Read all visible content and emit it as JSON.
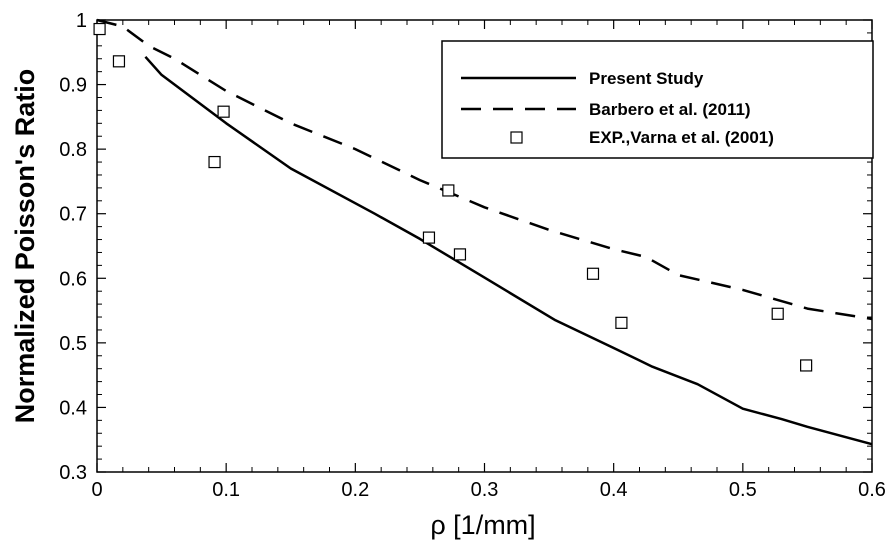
{
  "chart_data": {
    "type": "line",
    "title": "",
    "xlabel": "ρ [1/mm]",
    "ylabel": "Normalized Poisson's Ratio",
    "xlim": [
      0,
      0.6
    ],
    "ylim": [
      0.3,
      1
    ],
    "xticks": [
      0,
      0.1,
      0.2,
      0.3,
      0.4,
      0.5,
      0.6
    ],
    "yticks": [
      0.3,
      0.4,
      0.5,
      0.6,
      0.7,
      0.8,
      0.9,
      1
    ],
    "xtick_labels": [
      "0",
      "0.1",
      "0.2",
      "0.3",
      "0.4",
      "0.5",
      "0.6"
    ],
    "ytick_labels": [
      "0.3",
      "0.4",
      "0.5",
      "0.6",
      "0.7",
      "0.8",
      "0.9",
      "1"
    ],
    "grid": false,
    "legend_position": "top-right",
    "series": [
      {
        "name": "Present Study",
        "style": "solid",
        "x": [
          0.0375,
          0.05,
          0.1,
          0.15,
          0.215,
          0.25,
          0.3,
          0.355,
          0.4,
          0.43,
          0.465,
          0.5,
          0.53,
          0.55,
          0.6
        ],
        "y": [
          0.943,
          0.915,
          0.84,
          0.77,
          0.7,
          0.661,
          0.601,
          0.535,
          0.492,
          0.463,
          0.436,
          0.398,
          0.382,
          0.37,
          0.343
        ]
      },
      {
        "name": "Barbero et al. (2011)",
        "style": "dashed",
        "x": [
          0.0,
          0.02,
          0.04,
          0.06,
          0.1,
          0.15,
          0.2,
          0.25,
          0.3,
          0.35,
          0.4,
          0.425,
          0.45,
          0.5,
          0.55,
          0.6
        ],
        "y": [
          1.0,
          0.99,
          0.96,
          0.94,
          0.89,
          0.84,
          0.8,
          0.752,
          0.71,
          0.675,
          0.645,
          0.633,
          0.605,
          0.582,
          0.553,
          0.537
        ]
      },
      {
        "name": "EXP.,Varna et al. (2001)",
        "style": "markers",
        "x": [
          0.002,
          0.017,
          0.091,
          0.098,
          0.257,
          0.272,
          0.281,
          0.384,
          0.406,
          0.527,
          0.549
        ],
        "y": [
          0.986,
          0.936,
          0.78,
          0.858,
          0.663,
          0.736,
          0.637,
          0.607,
          0.531,
          0.545,
          0.465
        ]
      }
    ]
  }
}
